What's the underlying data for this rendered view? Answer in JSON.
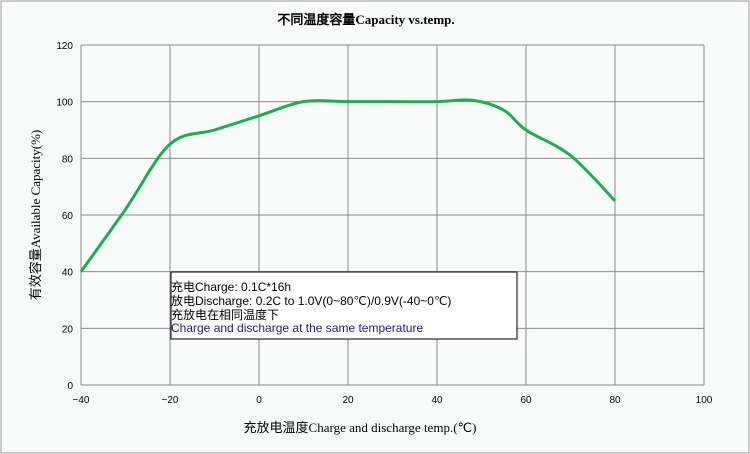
{
  "chart_data": {
    "type": "line",
    "title": "不同温度容量Capacity vs.temp.",
    "xlabel": "充放电温度Charge and discharge temp.(℃)",
    "ylabel": "有效容量Available Capacity(%)",
    "xlim": [
      -40,
      100
    ],
    "ylim": [
      0,
      120
    ],
    "xticks": [
      -40,
      -20,
      0,
      20,
      40,
      60,
      80,
      100
    ],
    "yticks": [
      0,
      20,
      40,
      60,
      80,
      100,
      120
    ],
    "grid": true,
    "series": [
      {
        "color": "#1db04a",
        "x": [
          -40,
          -30,
          -20,
          -10,
          0,
          10,
          20,
          30,
          40,
          48,
          55,
          60,
          70,
          80
        ],
        "y": [
          40,
          62,
          85,
          90,
          95,
          100,
          100,
          100,
          100,
          100.5,
          97,
          90,
          81,
          65
        ]
      }
    ],
    "annotation": [
      "充电Charge: 0.1C*16h",
      "放电Discharge: 0.2C to 1.0V(0~80℃)/0.9V(-40~0℃)",
      "充放电在相同温度下",
      "Charge and discharge at the same temperature"
    ]
  }
}
